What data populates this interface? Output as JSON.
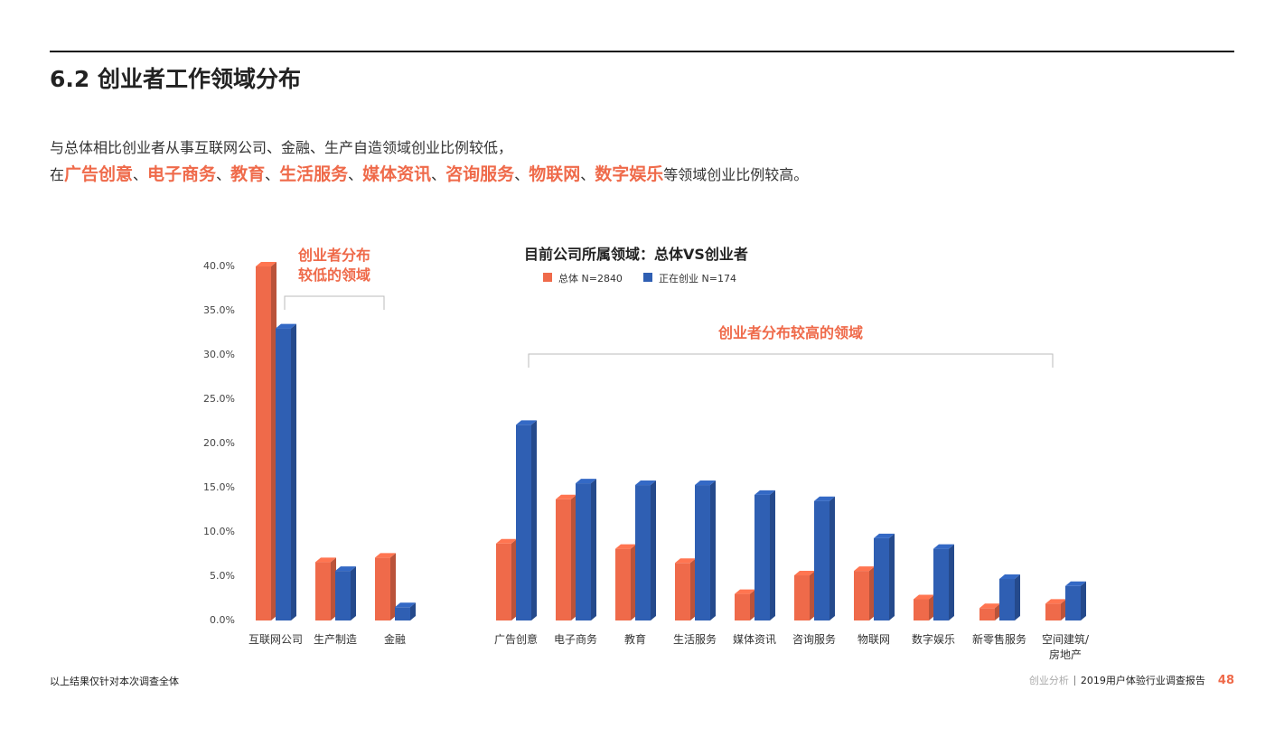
{
  "header": {
    "title": "6.2 创业者工作领域分布"
  },
  "intro": {
    "line1": "与总体相比创业者从事互联网公司、金融、生产自造领域创业比例较低，",
    "line2": [
      {
        "text": "在",
        "highlight": false
      },
      {
        "text": "广告创意",
        "highlight": true
      },
      {
        "text": "、",
        "highlight": false
      },
      {
        "text": "电子商务",
        "highlight": true
      },
      {
        "text": "、",
        "highlight": false
      },
      {
        "text": "教育",
        "highlight": true
      },
      {
        "text": "、",
        "highlight": false
      },
      {
        "text": "生活服务",
        "highlight": true
      },
      {
        "text": "、",
        "highlight": false
      },
      {
        "text": "媒体资讯",
        "highlight": true
      },
      {
        "text": "、",
        "highlight": false
      },
      {
        "text": "咨询服务",
        "highlight": true
      },
      {
        "text": "、",
        "highlight": false
      },
      {
        "text": "物联网",
        "highlight": true
      },
      {
        "text": "、",
        "highlight": false
      },
      {
        "text": "数字娱乐",
        "highlight": true
      },
      {
        "text": "等领域创业比例较高。",
        "highlight": false
      }
    ]
  },
  "chart_data": {
    "type": "bar3d",
    "title": "目前公司所属领域：总体VS创业者",
    "categories": [
      "互联网公司",
      "生产制造",
      "金融",
      "广告创意",
      "电子商务",
      "教育",
      "生活服务",
      "媒体资讯",
      "咨询服务",
      "物联网",
      "数字娱乐",
      "新零售服务",
      "空间建筑/\n房地产"
    ],
    "series": [
      {
        "name": "总体 N=2840",
        "color": "#ef6a4a",
        "values": [
          40,
          6.6,
          7.1,
          8.7,
          13.7,
          8.1,
          6.5,
          3.0,
          5.1,
          5.6,
          2.4,
          1.4,
          1.9
        ]
      },
      {
        "name": "正在创业 N=174",
        "color": "#2f5fb3",
        "values": [
          33,
          5.6,
          1.5,
          22.1,
          15.5,
          15.3,
          15.3,
          14.2,
          13.5,
          9.3,
          8.1,
          4.7,
          3.9
        ]
      }
    ],
    "ylim": [
      0,
      40
    ],
    "yticks": [
      {
        "value": 0,
        "label": "0.0%"
      },
      {
        "value": 5,
        "label": "5.0%"
      },
      {
        "value": 10,
        "label": "10.0%"
      },
      {
        "value": 15,
        "label": "15.0%"
      },
      {
        "value": 20,
        "label": "20.0%"
      },
      {
        "value": 25,
        "label": "25.0%"
      },
      {
        "value": 30,
        "label": "30.0%"
      },
      {
        "value": 35,
        "label": "35.0%"
      },
      {
        "value": 40,
        "label": "40.0%"
      }
    ],
    "annotations": [
      {
        "text": "创业者分布\n较低的领域"
      },
      {
        "text": "创业者分布较高的领域"
      }
    ]
  },
  "footer": {
    "note": "以上结果仅针对本次调查全体",
    "section": "创业分析",
    "report": "2019用户体验行业调查报告",
    "page": "48"
  }
}
